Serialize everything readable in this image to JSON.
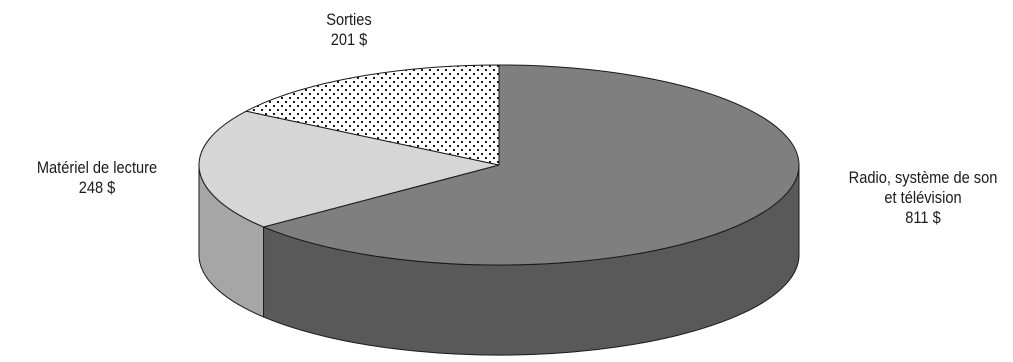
{
  "chart_data": {
    "type": "pie",
    "style": "3d",
    "title": "",
    "currency_suffix": " $",
    "slices": [
      {
        "name": "Radio, système de son et télévision",
        "label_lines": [
          "Radio, système de son",
          "et télévision",
          "811 $"
        ],
        "value": 811,
        "fill": "#7f7f7f",
        "side_fill": "#595959",
        "pattern": "solid"
      },
      {
        "name": "Matériel de lecture",
        "label_lines": [
          "Matériel de lecture",
          "248 $"
        ],
        "value": 248,
        "fill": "#d6d6d6",
        "side_fill": "#a6a6a6",
        "pattern": "solid"
      },
      {
        "name": "Sorties",
        "label_lines": [
          "Sorties",
          "201 $"
        ],
        "value": 201,
        "fill": "#ffffff",
        "side_fill": "#cccccc",
        "pattern": "dots"
      }
    ]
  }
}
